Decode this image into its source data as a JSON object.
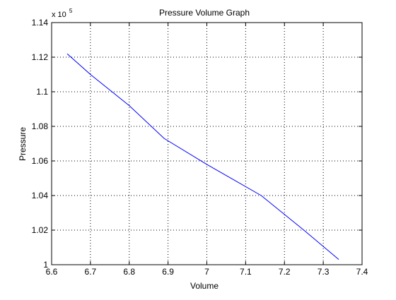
{
  "chart_data": {
    "type": "line",
    "title": "Pressure Volume Graph",
    "xlabel": "Volume",
    "ylabel": "Pressure",
    "xlim": [
      6.6,
      7.4
    ],
    "ylim": [
      1.0,
      1.14
    ],
    "y_multiplier_label": "x 10",
    "y_multiplier_exponent": "5",
    "xticks": [
      6.6,
      6.7,
      6.8,
      6.9,
      7.0,
      7.1,
      7.2,
      7.3,
      7.4
    ],
    "xtick_labels": [
      "6.6",
      "6.7",
      "6.8",
      "6.9",
      "7",
      "7.1",
      "7.2",
      "7.3",
      "7.4"
    ],
    "yticks": [
      1.0,
      1.02,
      1.04,
      1.06,
      1.08,
      1.1,
      1.12,
      1.14
    ],
    "ytick_labels": [
      "1",
      "1.02",
      "1.04",
      "1.06",
      "1.08",
      "1.1",
      "1.12",
      "1.14"
    ],
    "grid": true,
    "grid_style": "dotted",
    "series": [
      {
        "color": "#0000ff",
        "x": [
          6.64,
          6.7,
          6.8,
          6.89,
          7.0,
          7.14,
          7.25,
          7.34
        ],
        "y": [
          1.122,
          1.11,
          1.092,
          1.073,
          1.058,
          1.04,
          1.02,
          1.003
        ]
      }
    ]
  }
}
